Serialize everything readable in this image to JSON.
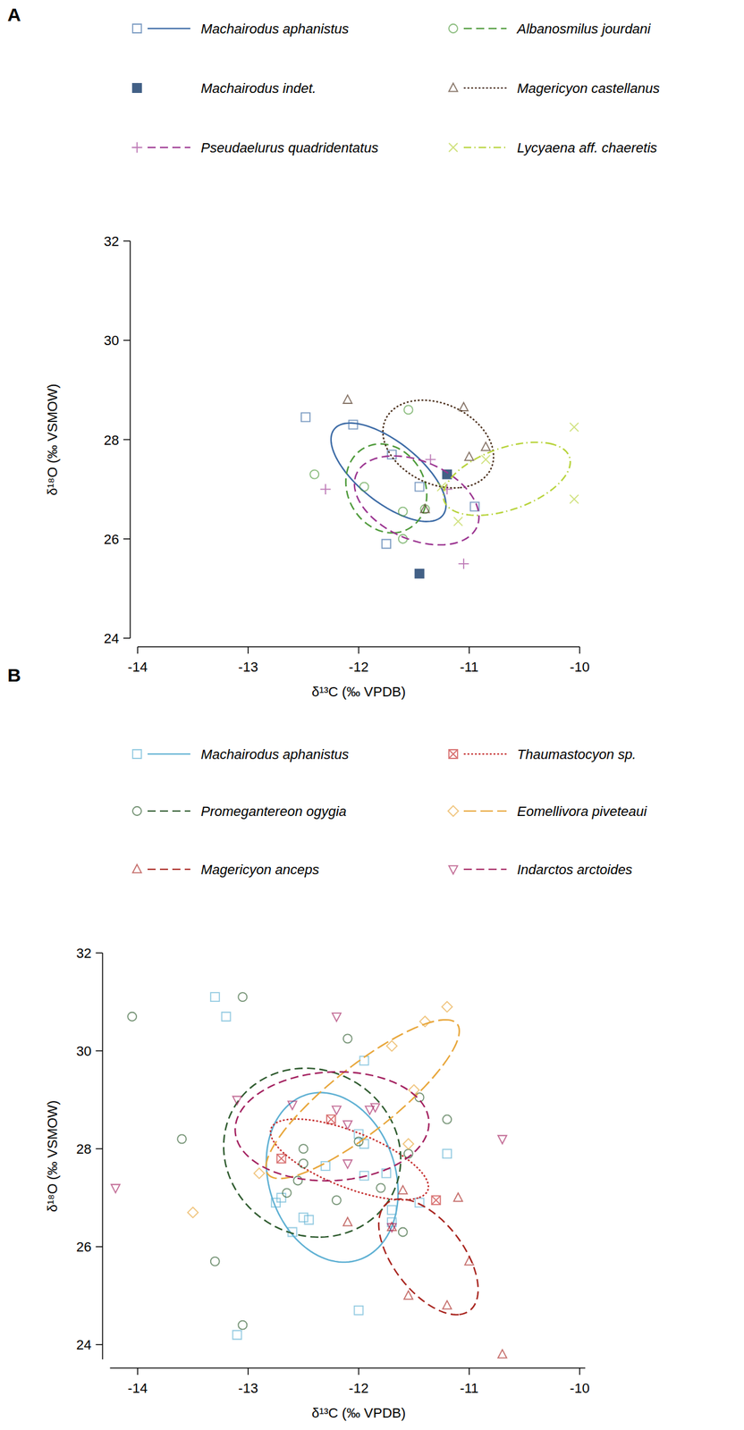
{
  "chart_data": [
    {
      "type": "scatter",
      "title": "A",
      "x_label": "δ¹³C (‰ VPDB)",
      "y_label": "δ¹⁸O (‰ VSMOW)",
      "xlim": [
        -14,
        -10
      ],
      "ylim": [
        24,
        32
      ],
      "xticks": [
        -14,
        -13,
        -12,
        -11,
        -10
      ],
      "yticks": [
        24,
        26,
        28,
        30,
        32
      ],
      "grid": false,
      "legend": "top",
      "series": [
        {
          "name": "Machairodus aphanistus",
          "color": "#3b6aa5",
          "marker": "square",
          "line_style": "solid",
          "x": [
            -12.48,
            -12.05,
            -11.7,
            -11.45,
            -11.75,
            -10.95
          ],
          "values": [
            28.45,
            28.3,
            27.7,
            27.05,
            25.9,
            26.65
          ]
        },
        {
          "name": "Albanosmilus jourdani",
          "color": "#4e9a3a",
          "marker": "circle",
          "line_style": "dashed",
          "x": [
            -12.4,
            -11.95,
            -11.55,
            -11.6,
            -11.6,
            -11.4
          ],
          "values": [
            27.3,
            27.05,
            28.6,
            26.55,
            26.0,
            26.6
          ]
        },
        {
          "name": "Machairodus indet.",
          "color": "#2e4f7a",
          "marker": "filled_square",
          "line_style": "none",
          "x": [
            -11.2,
            -11.45
          ],
          "values": [
            27.3,
            25.3
          ]
        },
        {
          "name": "Magericyon castellanus",
          "color": "#4a2e1a",
          "marker": "triangle",
          "line_style": "dotted",
          "x": [
            -12.1,
            -11.4,
            -11.05,
            -11.0,
            -10.85
          ],
          "values": [
            28.8,
            26.6,
            28.65,
            27.65,
            27.85
          ]
        },
        {
          "name": "Pseudaelurus quadridentatus",
          "color": "#9b3490",
          "marker": "plus",
          "line_style": "dashed",
          "x": [
            -12.3,
            -11.35,
            -11.2,
            -11.05
          ],
          "values": [
            27.0,
            27.6,
            27.0,
            25.5
          ]
        },
        {
          "name": "Lycyaena aff. chaeretis",
          "color": "#b7d33a",
          "marker": "cross",
          "line_style": "dot_dash",
          "x": [
            -10.05,
            -10.05,
            -10.85,
            -11.25,
            -11.1
          ],
          "values": [
            28.25,
            26.8,
            27.6,
            27.05,
            26.35
          ]
        }
      ]
    },
    {
      "type": "scatter",
      "title": "B",
      "x_label": "δ¹³C (‰ VPDB)",
      "y_label": "δ¹⁸O (‰ VSMOW)",
      "xlim": [
        -14.25,
        -9.95
      ],
      "ylim": [
        23.7,
        32
      ],
      "xticks": [
        -14,
        -13,
        -12,
        -11,
        -10
      ],
      "yticks": [
        24,
        26,
        28,
        30,
        32
      ],
      "grid": false,
      "legend": "top",
      "series": [
        {
          "name": "Machairodus aphanistus",
          "color": "#5eb0d3",
          "marker": "square",
          "line_style": "solid",
          "x": [
            -13.3,
            -13.2,
            -11.95,
            -12.0,
            -11.95,
            -11.2,
            -12.3,
            -11.95,
            -11.75,
            -12.7,
            -12.75,
            -12.5,
            -12.45,
            -12.6,
            -11.7,
            -11.7,
            -11.45,
            -12.0,
            -13.1
          ],
          "values": [
            31.1,
            30.7,
            29.8,
            28.3,
            28.1,
            27.9,
            27.65,
            27.45,
            27.5,
            27.0,
            26.9,
            26.6,
            26.55,
            26.3,
            26.75,
            26.5,
            26.9,
            24.7,
            24.2
          ]
        },
        {
          "name": "Thaumastocyon sp.",
          "color": "#c42a2a",
          "marker": "boxed_x",
          "line_style": "dotted",
          "x": [
            -12.7,
            -12.25,
            -11.3
          ],
          "values": [
            27.8,
            28.6,
            26.95
          ]
        },
        {
          "name": "Promegantereon ogygia",
          "color": "#2d5a2d",
          "marker": "circle",
          "line_style": "dashed",
          "x": [
            -14.05,
            -13.05,
            -12.1,
            -11.45,
            -11.2,
            -13.6,
            -12.0,
            -12.5,
            -12.5,
            -12.55,
            -12.65,
            -11.8,
            -11.55,
            -11.6,
            -13.3,
            -13.05,
            -12.2
          ],
          "values": [
            30.7,
            31.1,
            30.25,
            29.05,
            28.6,
            28.2,
            28.15,
            28.0,
            27.7,
            27.35,
            27.1,
            27.2,
            27.9,
            26.3,
            25.7,
            24.4,
            26.95
          ]
        },
        {
          "name": "Eomellivora piveteaui",
          "color": "#e8a63a",
          "marker": "diamond",
          "line_style": "long_dash",
          "x": [
            -13.5,
            -12.9,
            -11.7,
            -11.5,
            -11.4,
            -11.2,
            -11.55
          ],
          "values": [
            26.7,
            27.5,
            30.1,
            29.2,
            30.6,
            30.9,
            28.1
          ]
        },
        {
          "name": "Magericyon anceps",
          "color": "#a8241e",
          "marker": "triangle",
          "line_style": "dashed",
          "x": [
            -11.2,
            -10.7,
            -11.0,
            -11.55,
            -12.1,
            -11.6,
            -11.1,
            -11.7
          ],
          "values": [
            24.8,
            23.8,
            25.7,
            25.0,
            26.5,
            27.15,
            27.0,
            26.4
          ]
        },
        {
          "name": "Indarctos arctoides",
          "color": "#a3205f",
          "marker": "inverted_triangle",
          "line_style": "dashed",
          "x": [
            -14.2,
            -13.1,
            -12.6,
            -12.2,
            -12.1,
            -12.1,
            -11.9,
            -11.85,
            -12.2,
            -10.7,
            -11.7
          ],
          "values": [
            27.2,
            29.0,
            28.9,
            28.8,
            28.5,
            27.7,
            28.8,
            28.85,
            30.7,
            28.2,
            26.4
          ]
        }
      ]
    }
  ]
}
